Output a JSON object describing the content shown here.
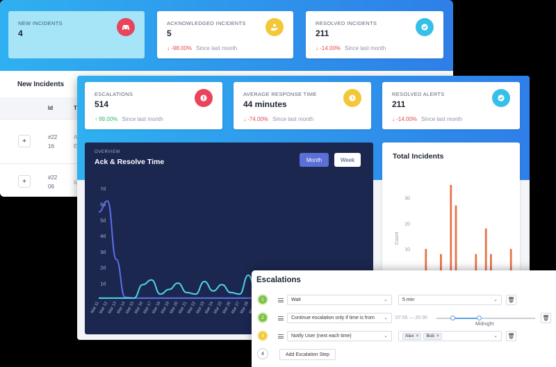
{
  "back": {
    "cards": [
      {
        "label": "NEW INCIDENTS",
        "value": "4",
        "icon": "car-crash-icon"
      },
      {
        "label": "ACKNOWLEDGED INCIDENTS",
        "value": "5",
        "change": "-98.00%",
        "since": "Since last month",
        "icon": "hand-user-icon"
      },
      {
        "label": "RESOLVED INCIDENTS",
        "value": "211",
        "change": "-14.00%",
        "since": "Since last month",
        "icon": "check-circle-icon"
      }
    ],
    "new_incidents": {
      "title": "New Incidents",
      "headers": [
        "Id",
        "T"
      ],
      "rows": [
        {
          "expand": "+",
          "id": "#22 16",
          "extra": "A\nE"
        },
        {
          "expand": "+",
          "id": "#22 06",
          "extra": "Ic"
        }
      ]
    }
  },
  "front": {
    "cards": [
      {
        "label": "ESCALATIONS",
        "value": "514",
        "change": "99.00%",
        "since": "Since last month",
        "icon": "alert-circle-icon"
      },
      {
        "label": "AVERAGE RESPONSE TIME",
        "value": "44 minutes",
        "change": "-74.00%",
        "since": "Since last month",
        "icon": "clock-icon"
      },
      {
        "label": "RESOLVED ALERTS",
        "value": "211",
        "change": "-14.00%",
        "since": "Since last month",
        "icon": "check-circle-icon"
      }
    ],
    "overview": {
      "eyebrow": "OVERVIEW",
      "title": "Ack & Resolve Time",
      "buttons": {
        "month": "Month",
        "week": "Week"
      }
    },
    "total": {
      "title": "Total Incidents"
    }
  },
  "chart_data": [
    {
      "type": "line",
      "title": "Ack & Resolve Time",
      "y_tick_labels": [
        "1d",
        "2d",
        "3d",
        "4d",
        "5d",
        "6d",
        "7d"
      ],
      "ylim": [
        0,
        7
      ],
      "categories": [
        "Mar 11",
        "Mar 12",
        "Mar 13",
        "Mar 14",
        "Mar 15",
        "Mar 16",
        "Mar 17",
        "Mar 18",
        "Mar 19",
        "Mar 20",
        "Mar 21",
        "Mar 22",
        "Mar 23",
        "Mar 24",
        "Mar 25",
        "Mar 26",
        "Mar 27",
        "Mar 28",
        "Mar 29"
      ],
      "series": [
        {
          "color": "#5b6fe8",
          "values": [
            5.5,
            6.2,
            2.5,
            0.1,
            0.05,
            0.05,
            0.05,
            0.05,
            0.05,
            0.05,
            0.05,
            0.05,
            0.05,
            0.05,
            0.05,
            0.05,
            0.05,
            0.05,
            0.05
          ]
        },
        {
          "color": "#4fd6e8",
          "values": [
            0.05,
            0.05,
            0.05,
            0.05,
            0.05,
            0.9,
            1.2,
            0.3,
            0.6,
            1.0,
            0.4,
            0.3,
            1.1,
            0.5,
            0.9,
            0.4,
            0.3,
            1.5,
            0.2
          ]
        }
      ],
      "grid": false
    },
    {
      "type": "bar",
      "title": "Total Incidents",
      "ylabel": "Count",
      "y_tick_labels": [
        "10",
        "20",
        "30"
      ],
      "ylim": [
        0,
        38
      ],
      "color": "#e8734a",
      "values": [
        0,
        0,
        10,
        0,
        0,
        8,
        0,
        35,
        27,
        0,
        0,
        0,
        8,
        0,
        18,
        8,
        0,
        0,
        0,
        10
      ]
    }
  ],
  "escalations": {
    "title": "Escalations",
    "steps": [
      {
        "num": "1",
        "action": "Wait",
        "value": "5 min"
      },
      {
        "num": "2",
        "action": "Continue escalation only if time is from",
        "time_range": "07:55 — 20:30",
        "slider_label": "Midnight"
      },
      {
        "num": "3",
        "action": "Notify User (next each time)",
        "users": [
          "Alex",
          "Bob"
        ]
      },
      {
        "num": "4"
      }
    ],
    "add_button": "Add Escalation Step"
  }
}
